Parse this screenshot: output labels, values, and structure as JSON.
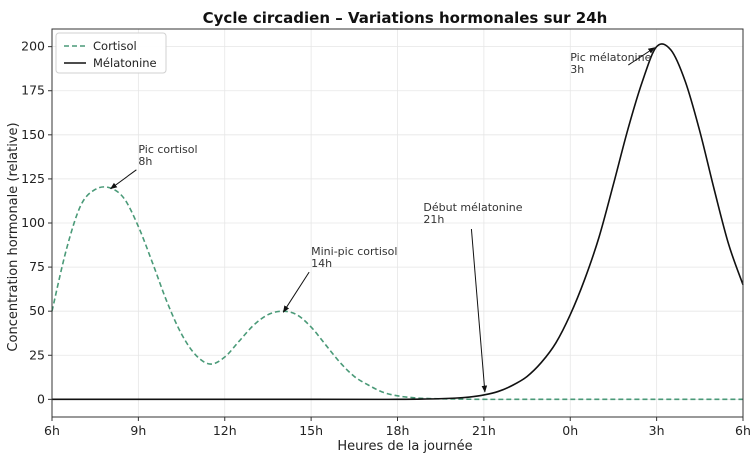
{
  "chart_data": {
    "type": "line",
    "title": "Cycle circadien – Variations hormonales sur 24h",
    "xlabel": "Heures de la journée",
    "ylabel": "Concentration hormonale (relative)",
    "xlim": [
      6,
      30
    ],
    "ylim": [
      -10,
      210
    ],
    "xticks": [
      6,
      9,
      12,
      15,
      18,
      21,
      24,
      27,
      30
    ],
    "xtick_labels": [
      "6h",
      "9h",
      "12h",
      "15h",
      "18h",
      "21h",
      "0h",
      "3h",
      "6h"
    ],
    "yticks": [
      0,
      25,
      50,
      75,
      100,
      125,
      150,
      175,
      200
    ],
    "ytick_labels": [
      "0",
      "25",
      "50",
      "75",
      "100",
      "125",
      "150",
      "175",
      "200"
    ],
    "grid": true,
    "legend_position": "top-left",
    "series": [
      {
        "name": "Cortisol",
        "style": "dashed",
        "color": "#4a9a78",
        "x": [
          6,
          6.5,
          7,
          7.5,
          8,
          8.5,
          9,
          9.5,
          10,
          10.5,
          11,
          11.5,
          12,
          12.5,
          13,
          13.5,
          14,
          14.5,
          15,
          15.5,
          16,
          16.5,
          17,
          17.5,
          18,
          18.5,
          19,
          20,
          21,
          22,
          24,
          27,
          30
        ],
        "values": [
          50,
          85,
          110,
          119,
          120,
          114,
          98,
          77,
          55,
          37,
          25,
          20,
          24,
          33,
          42,
          48,
          50,
          48,
          41,
          31,
          21,
          13,
          8,
          4,
          2,
          1,
          0.5,
          0.2,
          0,
          0,
          0,
          0,
          0
        ]
      },
      {
        "name": "Mélatonine",
        "style": "solid",
        "color": "#111111",
        "x": [
          6,
          15,
          18,
          19,
          20,
          20.5,
          21,
          21.5,
          22,
          22.5,
          23,
          23.5,
          24,
          24.5,
          25,
          25.5,
          26,
          26.5,
          27,
          27.5,
          28,
          28.5,
          29,
          29.5,
          30
        ],
        "values": [
          0,
          0,
          0,
          0.2,
          0.7,
          1.3,
          2.5,
          4.5,
          8,
          13,
          21,
          32,
          48,
          68,
          92,
          122,
          153,
          180,
          200,
          198,
          180,
          152,
          119,
          88,
          65
        ]
      }
    ],
    "annotations": [
      {
        "line1": "Pic cortisol",
        "line2": "8h",
        "point": [
          8,
          120
        ],
        "text_at": [
          9,
          133
        ]
      },
      {
        "line1": "Mini-pic cortisol",
        "line2": "14h",
        "point": [
          14,
          50
        ],
        "text_at": [
          15,
          75
        ]
      },
      {
        "line1": "Début mélatonine",
        "line2": "21h",
        "point": [
          21,
          2.5
        ],
        "text_at": [
          18.9,
          100
        ]
      },
      {
        "line1": "Pic mélatonine",
        "line2": "3h",
        "point": [
          27,
          200
        ],
        "text_at": [
          24,
          185
        ]
      }
    ]
  }
}
